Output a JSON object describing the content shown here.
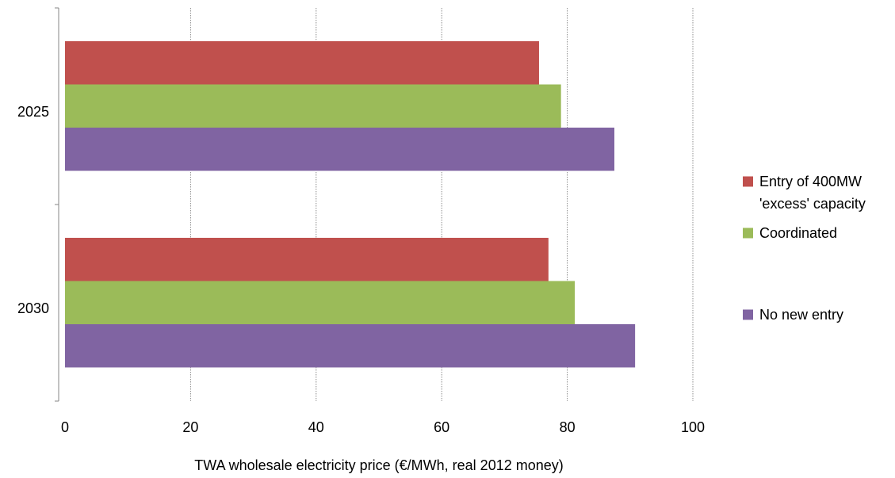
{
  "chart_data": {
    "type": "bar",
    "orientation": "horizontal",
    "categories": [
      "2025",
      "2030"
    ],
    "series": [
      {
        "name": "Entry of 400MW 'excess' capacity",
        "legend_lines": [
          "Entry of 400MW",
          "'excess' capacity"
        ],
        "color": "#c0504d",
        "values": [
          75.5,
          77
        ]
      },
      {
        "name": "Coordinated",
        "legend_lines": [
          "Coordinated"
        ],
        "color": "#9bbb59",
        "values": [
          79,
          81.2
        ]
      },
      {
        "name": "No new entry",
        "legend_lines": [
          "No new entry"
        ],
        "color": "#8064a2",
        "values": [
          87.5,
          90.8
        ]
      }
    ],
    "xlabel": "TWA wholesale electricity price (€/MWh, real 2012 money)",
    "ylabel": "",
    "xlim": [
      0,
      100
    ],
    "xticks": [
      0,
      20,
      40,
      60,
      80,
      100
    ],
    "xtick_labels": [
      "0",
      "20",
      "40",
      "60",
      "80",
      "100"
    ],
    "grid": "vertical dotted",
    "legend_position": "right"
  }
}
